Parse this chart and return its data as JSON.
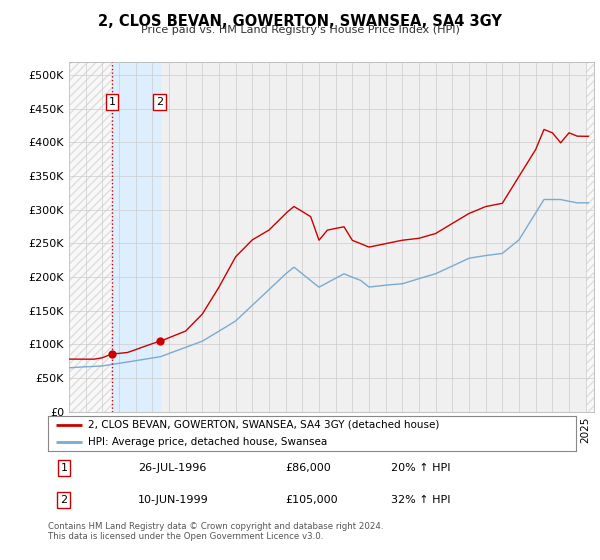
{
  "title": "2, CLOS BEVAN, GOWERTON, SWANSEA, SA4 3GY",
  "subtitle": "Price paid vs. HM Land Registry's House Price Index (HPI)",
  "xlim": [
    1994.0,
    2025.5
  ],
  "ylim": [
    0,
    520000
  ],
  "yticks": [
    0,
    50000,
    100000,
    150000,
    200000,
    250000,
    300000,
    350000,
    400000,
    450000,
    500000
  ],
  "transaction1": {
    "date_num": 1996.57,
    "price": 86000,
    "label": "1",
    "pct": "20%",
    "date_str": "26-JUL-1996"
  },
  "transaction2": {
    "date_num": 1999.44,
    "price": 105000,
    "label": "2",
    "pct": "32%",
    "date_str": "10-JUN-1999"
  },
  "red_line_color": "#cc0000",
  "blue_line_color": "#7aabcf",
  "shaded_region_color": "#ddeeff",
  "hatch_color": "#cccccc",
  "grid_color": "#cccccc",
  "background_color": "#f0f0f0",
  "plot_bg_color": "#f0f0f0",
  "legend_label_red": "2, CLOS BEVAN, GOWERTON, SWANSEA, SA4 3GY (detached house)",
  "legend_label_blue": "HPI: Average price, detached house, Swansea",
  "footnote": "Contains HM Land Registry data © Crown copyright and database right 2024.\nThis data is licensed under the Open Government Licence v3.0.",
  "table_row1": [
    "1",
    "26-JUL-1996",
    "£86,000",
    "20% ↑ HPI"
  ],
  "table_row2": [
    "2",
    "10-JUN-1999",
    "£105,000",
    "32% ↑ HPI"
  ],
  "hpi_anchors_x": [
    1994.0,
    1996.0,
    1996.5,
    1999.5,
    2002.0,
    2004.0,
    2007.0,
    2007.5,
    2009.0,
    2010.5,
    2011.5,
    2012.0,
    2013.0,
    2014.0,
    2016.0,
    2018.0,
    2019.0,
    2020.0,
    2021.0,
    2022.5,
    2023.5,
    2024.5
  ],
  "hpi_anchors_y": [
    65000,
    68000,
    70000,
    82000,
    105000,
    135000,
    205000,
    215000,
    185000,
    205000,
    195000,
    185000,
    188000,
    190000,
    205000,
    228000,
    232000,
    235000,
    255000,
    315000,
    315000,
    310000
  ],
  "red_anchors_x": [
    1994.0,
    1995.5,
    1996.0,
    1996.57,
    1997.5,
    1999.44,
    2000.0,
    2001.0,
    2002.0,
    2003.0,
    2004.0,
    2005.0,
    2006.0,
    2007.0,
    2007.5,
    2008.5,
    2009.0,
    2009.5,
    2010.5,
    2011.0,
    2012.0,
    2013.0,
    2014.0,
    2015.0,
    2016.0,
    2017.0,
    2018.0,
    2019.0,
    2020.0,
    2021.0,
    2022.0,
    2022.5,
    2023.0,
    2023.5,
    2024.0,
    2024.5
  ],
  "red_anchors_y": [
    78000,
    78000,
    80000,
    86000,
    88000,
    105000,
    110000,
    120000,
    145000,
    185000,
    230000,
    255000,
    270000,
    295000,
    305000,
    290000,
    255000,
    270000,
    275000,
    255000,
    245000,
    250000,
    255000,
    258000,
    265000,
    280000,
    295000,
    305000,
    310000,
    350000,
    390000,
    420000,
    415000,
    400000,
    415000,
    410000
  ]
}
